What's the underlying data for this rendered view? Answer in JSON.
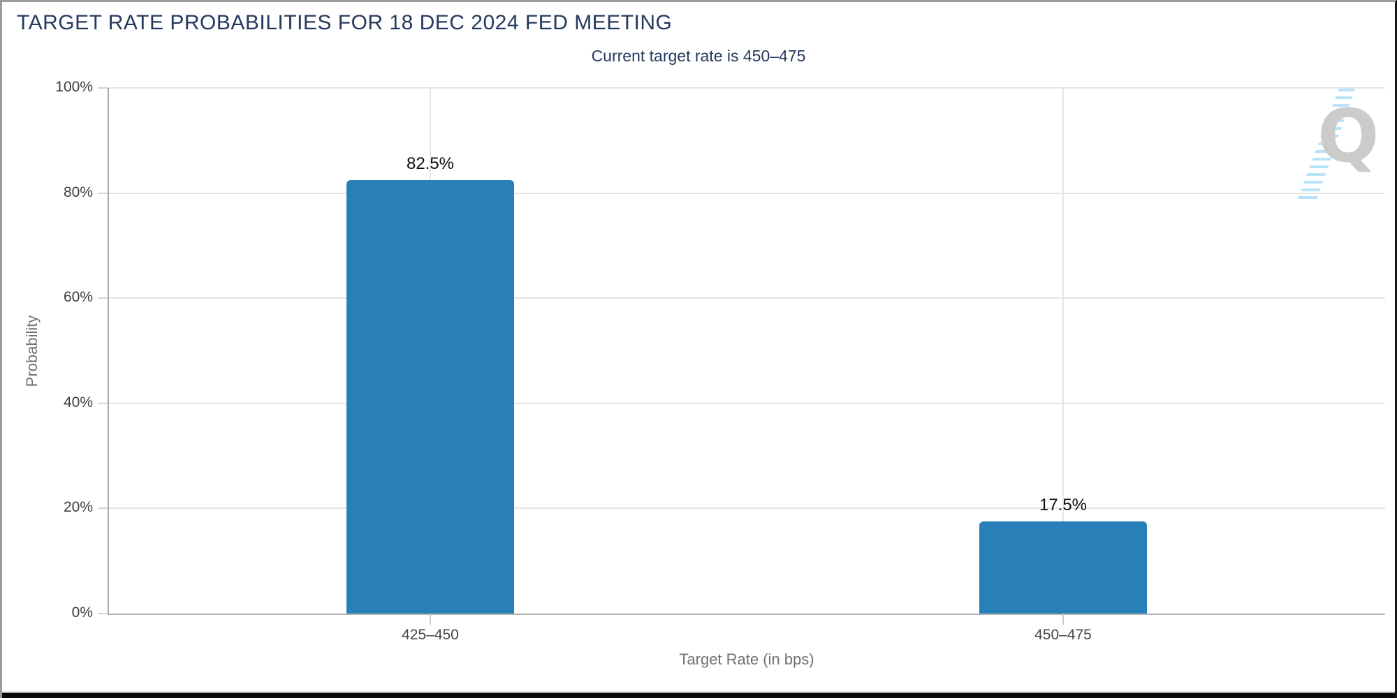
{
  "page": {
    "title": "TARGET RATE PROBABILITIES FOR 18 DEC 2024 FED MEETING",
    "subtitle": "Current target rate is 450–475"
  },
  "watermark": {
    "letter": "Q"
  },
  "chart_data": {
    "type": "bar",
    "title": "TARGET RATE PROBABILITIES FOR 18 DEC 2024 FED MEETING",
    "subtitle": "Current target rate is 450–475",
    "meeting_date": "18 DEC 2024",
    "current_target_rate": "450–475",
    "categories": [
      "425–450",
      "450–475"
    ],
    "values": [
      82.5,
      17.5
    ],
    "value_labels": [
      "82.5%",
      "17.5%"
    ],
    "xlabel": "Target Rate (in bps)",
    "ylabel": "Probability",
    "ylim": [
      0,
      100
    ],
    "yticks": [
      0,
      20,
      40,
      60,
      80,
      100
    ],
    "ytick_labels": [
      "0%",
      "20%",
      "40%",
      "60%",
      "80%",
      "100%"
    ],
    "grid": true,
    "legend": "none",
    "bar_color": "#2980b9",
    "title_color": "#25395f",
    "gridline_color": "#e5e5e5"
  }
}
